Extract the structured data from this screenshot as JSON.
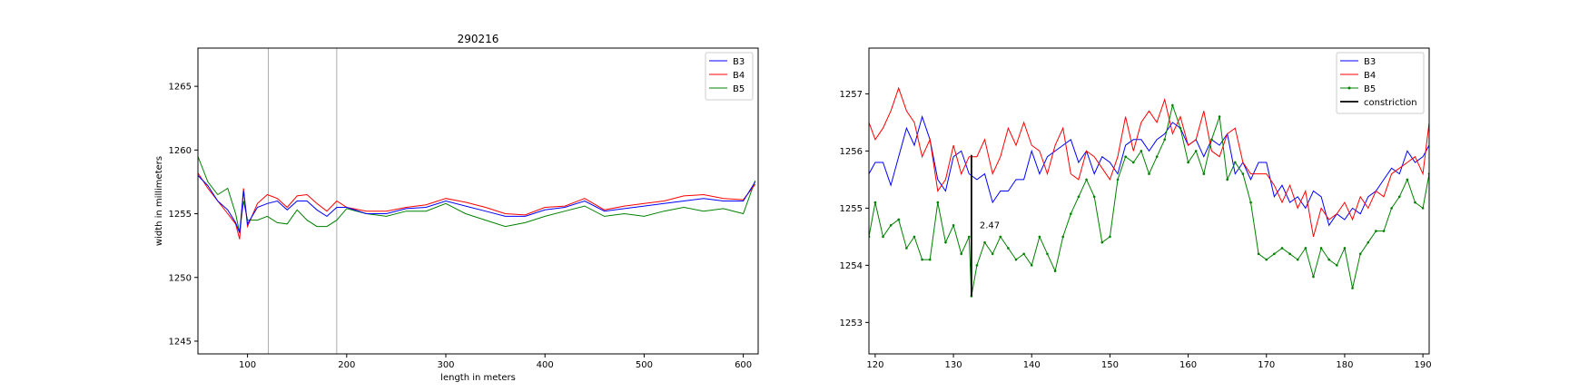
{
  "chart_data": [
    {
      "type": "line",
      "title": "290216",
      "xlabel": "length in meters",
      "ylabel": "width in millimeters",
      "xlim": [
        50,
        615
      ],
      "ylim": [
        1244,
        1268
      ],
      "xticks": [
        100,
        200,
        300,
        400,
        500,
        600
      ],
      "yticks": [
        1245,
        1250,
        1255,
        1260,
        1265
      ],
      "vlines": [
        121,
        190
      ],
      "legend_position": "top-right",
      "series": [
        {
          "name": "B3",
          "color": "#0000ff",
          "x": [
            50,
            60,
            70,
            80,
            88,
            92,
            96,
            100,
            110,
            120,
            130,
            140,
            150,
            160,
            170,
            180,
            190,
            200,
            220,
            240,
            260,
            280,
            300,
            320,
            340,
            360,
            380,
            400,
            420,
            440,
            460,
            480,
            500,
            520,
            540,
            560,
            580,
            600,
            612
          ],
          "y": [
            1258,
            1257.2,
            1256,
            1255.3,
            1254.3,
            1253.5,
            1256.8,
            1254.2,
            1255.5,
            1255.8,
            1256,
            1255.3,
            1256,
            1256,
            1255.3,
            1254.8,
            1255.5,
            1255.5,
            1255,
            1255,
            1255.4,
            1255.5,
            1256,
            1255.6,
            1255.2,
            1254.8,
            1254.8,
            1255.3,
            1255.5,
            1256,
            1255.2,
            1255.4,
            1255.6,
            1255.8,
            1256,
            1256.2,
            1256,
            1256,
            1257.5
          ]
        },
        {
          "name": "B4",
          "color": "#ff0000",
          "x": [
            50,
            60,
            70,
            80,
            88,
            92,
            96,
            100,
            110,
            120,
            130,
            140,
            150,
            160,
            170,
            180,
            190,
            200,
            220,
            240,
            260,
            280,
            300,
            320,
            340,
            360,
            380,
            400,
            420,
            440,
            460,
            480,
            500,
            520,
            540,
            560,
            580,
            600,
            612
          ],
          "y": [
            1258.2,
            1257,
            1256,
            1255,
            1254.2,
            1253,
            1257,
            1254,
            1255.8,
            1256.5,
            1256.2,
            1255.5,
            1256.4,
            1256.5,
            1255.8,
            1255.2,
            1256,
            1255.5,
            1255.2,
            1255.2,
            1255.5,
            1255.7,
            1256.2,
            1255.9,
            1255.5,
            1255,
            1254.9,
            1255.5,
            1255.6,
            1256.2,
            1255.3,
            1255.6,
            1255.8,
            1256,
            1256.4,
            1256.5,
            1256.2,
            1256.1,
            1257.3
          ]
        },
        {
          "name": "B5",
          "color": "#008000",
          "x": [
            50,
            60,
            70,
            80,
            88,
            92,
            96,
            100,
            110,
            120,
            130,
            140,
            150,
            160,
            170,
            180,
            190,
            200,
            220,
            240,
            260,
            280,
            300,
            320,
            340,
            360,
            380,
            400,
            420,
            440,
            460,
            480,
            500,
            520,
            540,
            560,
            580,
            600,
            612
          ],
          "y": [
            1259.5,
            1257.5,
            1256.5,
            1257,
            1255,
            1253.5,
            1256,
            1254.5,
            1254.5,
            1254.8,
            1254.3,
            1254.2,
            1255.3,
            1254.5,
            1254,
            1254,
            1254.5,
            1255.4,
            1255,
            1254.8,
            1255.2,
            1255.2,
            1255.8,
            1255,
            1254.5,
            1254,
            1254.3,
            1254.8,
            1255.2,
            1255.6,
            1254.8,
            1255,
            1254.8,
            1255.2,
            1255.5,
            1255.2,
            1255.4,
            1255,
            1257.6
          ]
        }
      ]
    },
    {
      "type": "line",
      "xlim": [
        119.2,
        190.8
      ],
      "ylim": [
        1252.45,
        1257.8
      ],
      "xticks": [
        120,
        130,
        140,
        150,
        160,
        170,
        180,
        190
      ],
      "yticks": [
        1253,
        1254,
        1255,
        1256,
        1257
      ],
      "legend_position": "top-right",
      "constriction": {
        "name": "constriction",
        "x": 132.3,
        "y_top": 1255.93,
        "y_bottom": 1253.46,
        "label": "2.47",
        "color": "#000000"
      },
      "series": [
        {
          "name": "B3",
          "color": "#0000ff",
          "x": [
            119.2,
            120,
            121,
            122,
            123,
            124,
            125,
            126,
            127,
            128,
            129,
            130,
            131,
            132,
            133,
            134,
            135,
            136,
            137,
            138,
            139,
            140,
            141,
            142,
            143,
            144,
            145,
            146,
            147,
            148,
            149,
            150,
            151,
            152,
            153,
            154,
            155,
            156,
            157,
            158,
            159,
            160,
            161,
            162,
            163,
            164,
            165,
            166,
            167,
            168,
            169,
            170,
            171,
            172,
            173,
            174,
            175,
            176,
            177,
            178,
            179,
            180,
            181,
            182,
            183,
            184,
            185,
            186,
            187,
            188,
            189,
            190,
            190.8
          ],
          "y": [
            1255.6,
            1255.8,
            1255.8,
            1255.4,
            1255.9,
            1256.4,
            1256.1,
            1256.6,
            1256.2,
            1255.5,
            1255.3,
            1255.9,
            1256,
            1255.6,
            1255.5,
            1255.6,
            1255.1,
            1255.3,
            1255.3,
            1255.5,
            1255.5,
            1256,
            1255.6,
            1255.9,
            1256,
            1256.1,
            1256.2,
            1255.8,
            1256,
            1255.6,
            1255.9,
            1255.8,
            1255.6,
            1256.1,
            1256.2,
            1256.2,
            1256,
            1256.2,
            1256.3,
            1256.5,
            1256.4,
            1256.1,
            1256.2,
            1255.9,
            1256.2,
            1256.1,
            1256.3,
            1255.6,
            1255.8,
            1255.5,
            1255.8,
            1255.8,
            1255.2,
            1255.4,
            1255.1,
            1255.2,
            1255,
            1255.3,
            1255.2,
            1254.7,
            1254.9,
            1254.8,
            1255,
            1254.9,
            1255.2,
            1255.3,
            1255.5,
            1255.7,
            1255.6,
            1256,
            1255.8,
            1255.9,
            1256.1
          ]
        },
        {
          "name": "B4",
          "color": "#ff0000",
          "x": [
            119.2,
            120,
            121,
            122,
            123,
            124,
            125,
            126,
            127,
            128,
            129,
            130,
            131,
            132,
            133,
            134,
            135,
            136,
            137,
            138,
            139,
            140,
            141,
            142,
            143,
            144,
            145,
            146,
            147,
            148,
            149,
            150,
            151,
            152,
            153,
            154,
            155,
            156,
            157,
            158,
            159,
            160,
            161,
            162,
            163,
            164,
            165,
            166,
            167,
            168,
            169,
            170,
            171,
            172,
            173,
            174,
            175,
            176,
            177,
            178,
            179,
            180,
            181,
            182,
            183,
            184,
            185,
            186,
            187,
            188,
            189,
            190,
            190.8
          ],
          "y": [
            1256.5,
            1256.2,
            1256.4,
            1256.7,
            1257.1,
            1256.7,
            1256.5,
            1255.9,
            1256.2,
            1255.3,
            1255.5,
            1256.1,
            1255.6,
            1255.9,
            1255.9,
            1256.2,
            1255.6,
            1255.9,
            1256.4,
            1256.1,
            1256.5,
            1256.1,
            1256,
            1255.6,
            1256.1,
            1256.4,
            1255.6,
            1255.5,
            1256,
            1255.9,
            1255.7,
            1255.5,
            1255.9,
            1256.6,
            1256,
            1256.5,
            1256.7,
            1256.5,
            1256.9,
            1256.3,
            1256.6,
            1256.1,
            1256.2,
            1256.7,
            1256,
            1255.9,
            1256.3,
            1256.4,
            1255.8,
            1255.6,
            1255.6,
            1255.6,
            1255.4,
            1255.1,
            1255.4,
            1255,
            1255.3,
            1254.5,
            1255,
            1254.8,
            1254.9,
            1255.1,
            1254.8,
            1255.2,
            1255,
            1255.3,
            1255.2,
            1255.6,
            1255.7,
            1255.8,
            1255.9,
            1255.6,
            1256.5
          ]
        },
        {
          "name": "B5",
          "color": "#008000",
          "x": [
            119.2,
            120,
            121,
            122,
            123,
            124,
            125,
            126,
            127,
            128,
            129,
            130,
            131,
            132,
            132.3,
            133,
            134,
            135,
            136,
            137,
            138,
            139,
            140,
            141,
            142,
            143,
            144,
            145,
            146,
            147,
            148,
            149,
            150,
            151,
            152,
            153,
            154,
            155,
            156,
            157,
            158,
            159,
            160,
            161,
            162,
            163,
            164,
            165,
            166,
            167,
            168,
            169,
            170,
            171,
            172,
            173,
            174,
            175,
            176,
            177,
            178,
            179,
            180,
            181,
            182,
            183,
            184,
            185,
            186,
            187,
            188,
            189,
            190,
            190.8
          ],
          "y": [
            1254.5,
            1255.1,
            1254.5,
            1254.7,
            1254.8,
            1254.3,
            1254.5,
            1254.1,
            1254.1,
            1255.1,
            1254.4,
            1254.7,
            1254.2,
            1254.5,
            1253.46,
            1254,
            1254.4,
            1254.2,
            1254.5,
            1254.3,
            1254.1,
            1254.2,
            1254,
            1254.5,
            1254.2,
            1253.9,
            1254.5,
            1254.9,
            1255.2,
            1255.5,
            1255.2,
            1254.4,
            1254.5,
            1255.5,
            1255.9,
            1255.8,
            1256,
            1255.6,
            1255.9,
            1256.2,
            1256.8,
            1256.4,
            1255.8,
            1256,
            1255.6,
            1256.2,
            1256.6,
            1255.5,
            1255.8,
            1255.6,
            1255.1,
            1254.2,
            1254.1,
            1254.2,
            1254.3,
            1254.2,
            1254.1,
            1254.3,
            1253.8,
            1254.3,
            1254.1,
            1254,
            1254.3,
            1253.6,
            1254.2,
            1254.4,
            1254.6,
            1254.6,
            1255,
            1255.2,
            1255.5,
            1255.1,
            1255,
            1255.6
          ]
        }
      ]
    }
  ]
}
